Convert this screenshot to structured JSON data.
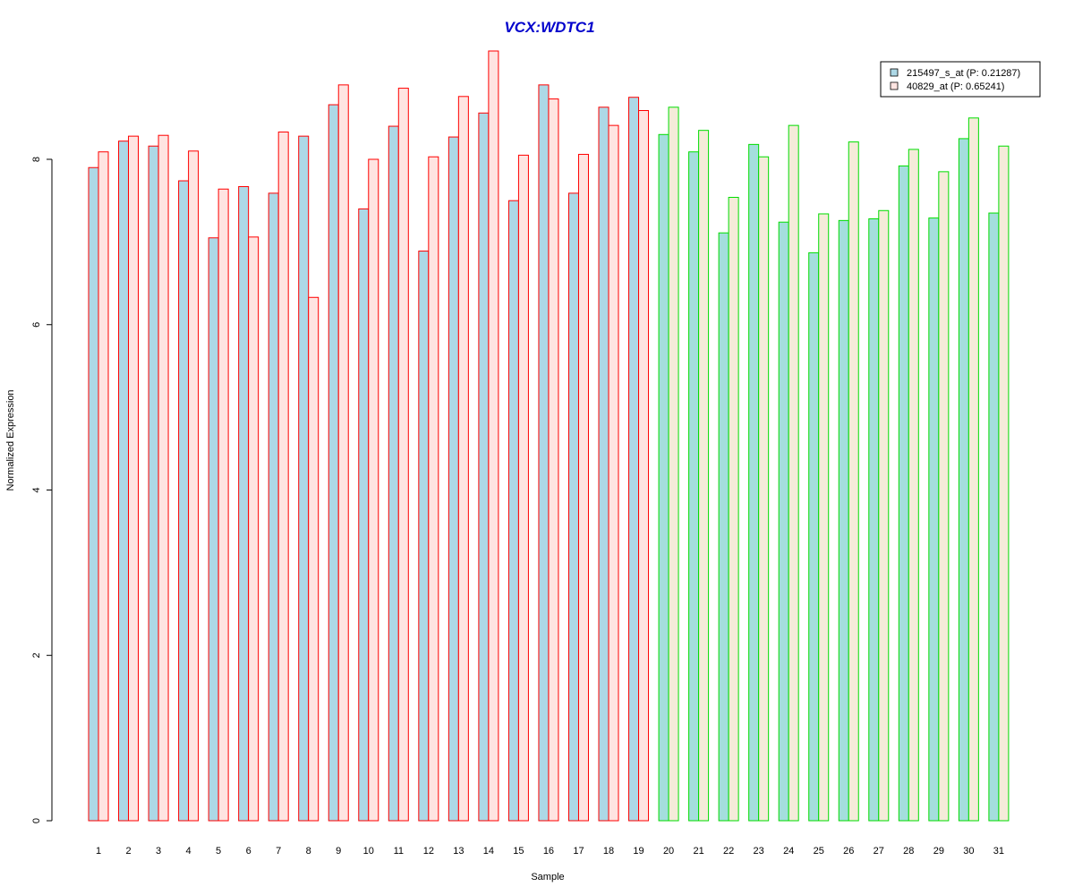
{
  "chart_data": {
    "type": "bar",
    "title": "VCX:WDTC1",
    "xlabel": "Sample",
    "ylabel": "Normalized Expression",
    "ylim": [
      0,
      9.4
    ],
    "yticks": [
      0,
      2,
      4,
      6,
      8
    ],
    "grid": false,
    "legend_position": "top-right",
    "categories": [
      "1",
      "2",
      "3",
      "4",
      "5",
      "6",
      "7",
      "8",
      "9",
      "10",
      "11",
      "12",
      "13",
      "14",
      "15",
      "16",
      "17",
      "18",
      "19",
      "20",
      "21",
      "22",
      "23",
      "24",
      "25",
      "26",
      "27",
      "28",
      "29",
      "30",
      "31"
    ],
    "group_border_colors": [
      "#ff0000",
      "#ff0000",
      "#ff0000",
      "#ff0000",
      "#ff0000",
      "#ff0000",
      "#ff0000",
      "#ff0000",
      "#ff0000",
      "#ff0000",
      "#ff0000",
      "#ff0000",
      "#ff0000",
      "#ff0000",
      "#ff0000",
      "#ff0000",
      "#ff0000",
      "#ff0000",
      "#ff0000",
      "#00dd00",
      "#00dd00",
      "#00dd00",
      "#00dd00",
      "#00dd00",
      "#00dd00",
      "#00dd00",
      "#00dd00",
      "#00dd00",
      "#00dd00",
      "#00dd00",
      "#00dd00"
    ],
    "series": [
      {
        "name": "215497_s_at (P: 0.21287)",
        "fill_group1": "#add8e6",
        "fill_group2": "#a4dedd",
        "values": [
          7.9,
          8.22,
          8.16,
          7.74,
          7.05,
          7.67,
          7.59,
          8.28,
          8.66,
          7.4,
          8.4,
          6.89,
          8.27,
          8.56,
          7.5,
          8.9,
          7.59,
          8.63,
          8.75,
          8.3,
          8.09,
          7.11,
          8.18,
          7.24,
          6.87,
          7.26,
          7.28,
          7.92,
          7.29,
          8.25,
          7.35
        ]
      },
      {
        "name": "40829_at (P: 0.65241)",
        "fill_group1": "#ffe4e1",
        "fill_group2": "#f5ebd9",
        "values": [
          8.09,
          8.28,
          8.29,
          8.1,
          7.64,
          7.06,
          8.33,
          6.33,
          8.9,
          8.0,
          8.86,
          8.03,
          8.76,
          9.31,
          8.05,
          8.73,
          8.06,
          8.41,
          8.59,
          8.63,
          8.35,
          7.54,
          8.03,
          8.41,
          7.34,
          8.21,
          7.38,
          8.12,
          7.85,
          8.5,
          8.16
        ]
      }
    ]
  }
}
